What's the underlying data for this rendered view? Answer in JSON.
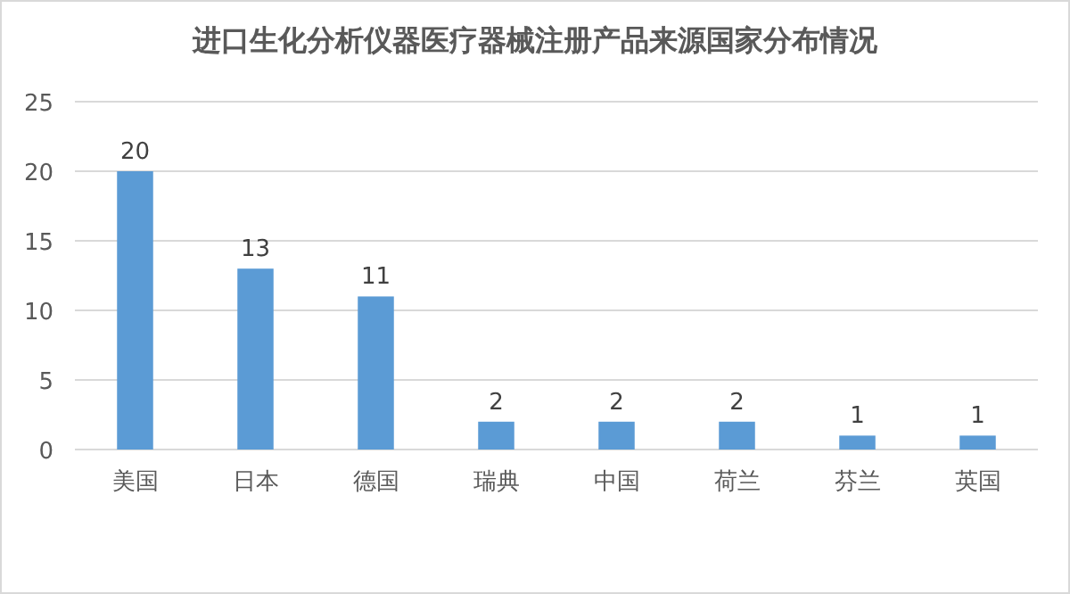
{
  "chart_data": {
    "type": "bar",
    "title": "进口生化分析仪器医疗器械注册产品来源国家分布情况",
    "categories": [
      "美国",
      "日本",
      "德国",
      "瑞典",
      "中国",
      "荷兰",
      "芬兰",
      "英国"
    ],
    "values": [
      20,
      13,
      11,
      2,
      2,
      2,
      1,
      1
    ],
    "color": "#5b9bd5",
    "ylim": [
      0,
      25
    ],
    "yticks": [
      0,
      5,
      10,
      15,
      20,
      25
    ],
    "grid": "y",
    "data_labels": true
  }
}
